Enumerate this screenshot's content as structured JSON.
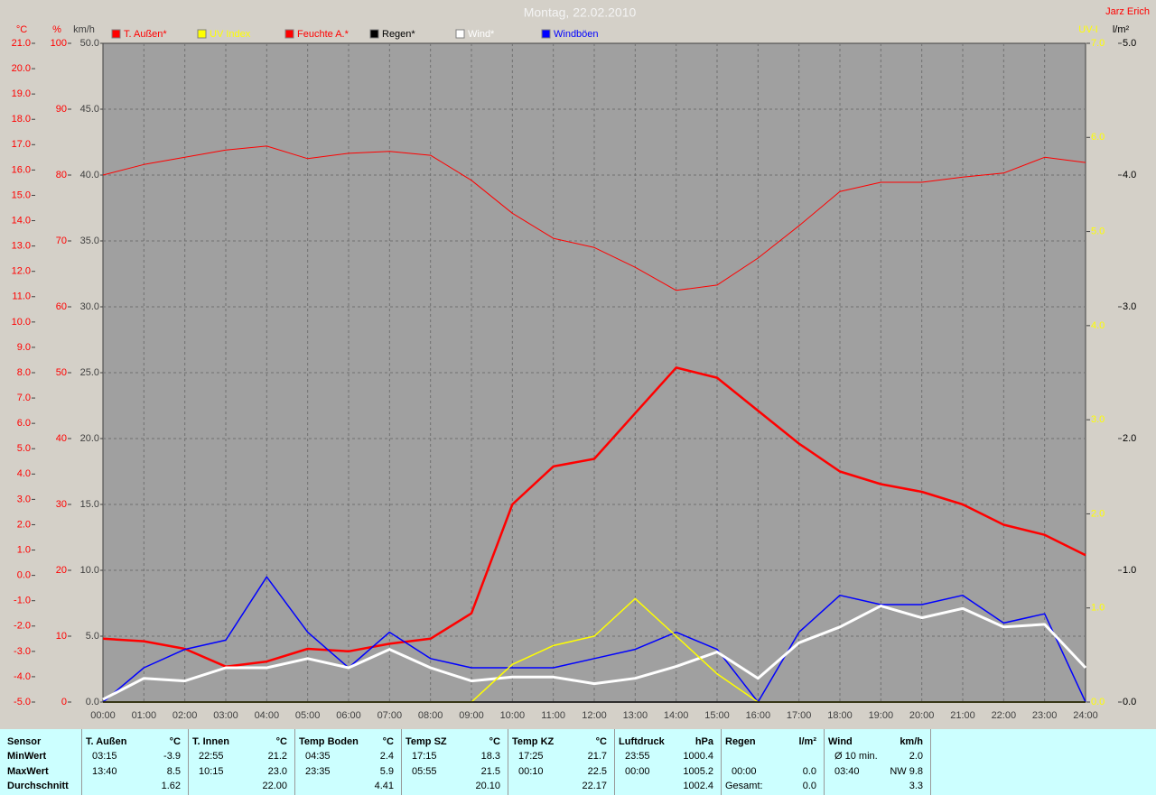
{
  "chart_data": {
    "type": "line",
    "title": "Montag, 22.02.2010",
    "author": "Jarz Erich",
    "categories": [
      "00:00",
      "01:00",
      "02:00",
      "03:00",
      "04:00",
      "05:00",
      "06:00",
      "07:00",
      "08:00",
      "09:00",
      "10:00",
      "11:00",
      "12:00",
      "13:00",
      "14:00",
      "15:00",
      "16:00",
      "17:00",
      "18:00",
      "19:00",
      "20:00",
      "21:00",
      "22:00",
      "23:00",
      "24:00"
    ],
    "axes": [
      {
        "unit": "°C",
        "color": "#ff0000",
        "lim": [
          -5,
          21
        ],
        "ticks": [
          {
            "value": -5,
            "label": "-5.0"
          },
          {
            "value": -4,
            "label": "-4.0"
          },
          {
            "value": -3,
            "label": "-3.0"
          },
          {
            "value": -2,
            "label": "-2.0"
          },
          {
            "value": -1,
            "label": "-1.0"
          },
          {
            "value": 0,
            "label": "0.0"
          },
          {
            "value": 1,
            "label": "1.0"
          },
          {
            "value": 2,
            "label": "2.0"
          },
          {
            "value": 3,
            "label": "3.0"
          },
          {
            "value": 4,
            "label": "4.0"
          },
          {
            "value": 5,
            "label": "5.0"
          },
          {
            "value": 6,
            "label": "6.0"
          },
          {
            "value": 7,
            "label": "7.0"
          },
          {
            "value": 8,
            "label": "8.0"
          },
          {
            "value": 9,
            "label": "9.0"
          },
          {
            "value": 10,
            "label": "10.0"
          },
          {
            "value": 11,
            "label": "11.0"
          },
          {
            "value": 12,
            "label": "12.0"
          },
          {
            "value": 13,
            "label": "13.0"
          },
          {
            "value": 14,
            "label": "14.0"
          },
          {
            "value": 15,
            "label": "15.0"
          },
          {
            "value": 16,
            "label": "16.0"
          },
          {
            "value": 17,
            "label": "17.0"
          },
          {
            "value": 18,
            "label": "18.0"
          },
          {
            "value": 19,
            "label": "19.0"
          },
          {
            "value": 20,
            "label": "20.0"
          },
          {
            "value": 21,
            "label": "21.0"
          }
        ]
      },
      {
        "unit": "%",
        "color": "#ff0000",
        "lim": [
          0,
          100
        ],
        "ticks": [
          0,
          10,
          20,
          30,
          40,
          50,
          60,
          70,
          80,
          90,
          100
        ]
      },
      {
        "unit": "km/h",
        "color": "#404040",
        "lim": [
          0,
          50
        ],
        "grid": true,
        "ticks": [
          {
            "value": 0,
            "label": "0.0"
          },
          {
            "value": 5,
            "label": "5.0"
          },
          {
            "value": 10,
            "label": "10.0"
          },
          {
            "value": 15,
            "label": "15.0"
          },
          {
            "value": 20,
            "label": "20.0"
          },
          {
            "value": 25,
            "label": "25.0"
          },
          {
            "value": 30,
            "label": "30.0"
          },
          {
            "value": 35,
            "label": "35.0"
          },
          {
            "value": 40,
            "label": "40.0"
          },
          {
            "value": 45,
            "label": "45.0"
          },
          {
            "value": 50,
            "label": "50.0"
          }
        ]
      },
      {
        "unit": "UV-I",
        "color": "#ffff00",
        "lim": [
          0,
          7
        ],
        "ticks": [
          {
            "value": 0,
            "label": "0.0"
          },
          {
            "value": 1,
            "label": "1.0"
          },
          {
            "value": 2,
            "label": "2.0"
          },
          {
            "value": 3,
            "label": "3.0"
          },
          {
            "value": 4,
            "label": "4.0"
          },
          {
            "value": 5,
            "label": "5.0"
          },
          {
            "value": 6,
            "label": "6.0"
          },
          {
            "value": 7,
            "label": "7.0"
          }
        ]
      },
      {
        "unit": "l/m²",
        "color": "#000000",
        "lim": [
          0,
          5
        ],
        "ticks": [
          {
            "value": 0,
            "label": "0.0"
          },
          {
            "value": 1,
            "label": "1.0"
          },
          {
            "value": 2,
            "label": "2.0"
          },
          {
            "value": 3,
            "label": "3.0"
          },
          {
            "value": 4,
            "label": "4.0"
          },
          {
            "value": 5,
            "label": "5.0"
          }
        ]
      }
    ],
    "series": [
      {
        "name": "T. Außen*",
        "color": "#ff0000",
        "axis": 0,
        "values": [
          -2.5,
          -2.6,
          -2.9,
          -3.6,
          -3.4,
          -2.9,
          -3.0,
          -2.7,
          -2.5,
          -1.5,
          2.8,
          4.3,
          4.6,
          6.4,
          8.2,
          7.8,
          6.5,
          5.2,
          4.1,
          3.6,
          3.3,
          2.8,
          2.0,
          1.6,
          0.8
        ]
      },
      {
        "name": "UV Index",
        "color": "#ffff00",
        "axis": 3,
        "values": [
          0,
          0,
          0,
          0,
          0,
          0,
          0,
          0,
          0,
          0,
          0.4,
          0.6,
          0.7,
          1.1,
          0.7,
          0.3,
          0,
          0,
          0,
          0,
          0,
          0,
          0,
          0,
          0
        ]
      },
      {
        "name": "Feuchte A.*",
        "color": "#ff0000",
        "axis": 1,
        "values": [
          80,
          81.6,
          82.7,
          83.8,
          84.4,
          82.5,
          83.3,
          83.6,
          83,
          79.2,
          74.2,
          70.4,
          69,
          66,
          62.5,
          63.3,
          67.4,
          72.3,
          77.5,
          78.9,
          78.9,
          79.7,
          80.3,
          82.7,
          81.9
        ]
      },
      {
        "name": "Regen*",
        "color": "#000000",
        "axis": 4,
        "values": [
          0,
          0,
          0,
          0,
          0,
          0,
          0,
          0,
          0,
          0,
          0,
          0,
          0,
          0,
          0,
          0,
          0,
          0,
          0,
          0,
          0,
          0,
          0,
          0,
          0
        ]
      },
      {
        "name": "Wind*",
        "color": "#ffffff",
        "axis": 2,
        "values": [
          0.2,
          1.8,
          1.6,
          2.6,
          2.6,
          3.3,
          2.6,
          4.0,
          2.6,
          1.6,
          1.9,
          1.9,
          1.4,
          1.8,
          2.7,
          3.8,
          1.8,
          4.5,
          5.7,
          7.3,
          6.4,
          7.1,
          5.7,
          5.9,
          2.6
        ]
      },
      {
        "name": "Windböen",
        "color": "#0000ff",
        "axis": 2,
        "values": [
          0,
          2.6,
          4.0,
          4.7,
          9.5,
          5.3,
          2.6,
          5.3,
          3.3,
          2.6,
          2.6,
          2.6,
          3.3,
          4.0,
          5.3,
          4.0,
          0,
          5.3,
          8.1,
          7.4,
          7.4,
          8.1,
          6.0,
          6.7,
          0
        ]
      }
    ]
  },
  "stats": {
    "row_labels": [
      "Sensor",
      "MinWert",
      "MaxWert",
      "Durchschnitt"
    ],
    "groups": [
      {
        "name": "T. Außen",
        "unit": "°C",
        "min": {
          "time": "03:15",
          "value": "-3.9"
        },
        "max": {
          "time": "13:40",
          "value": "8.5"
        },
        "avg": "1.62"
      },
      {
        "name": "T. Innen",
        "unit": "°C",
        "min": {
          "time": "22:55",
          "value": "21.2"
        },
        "max": {
          "time": "10:15",
          "value": "23.0"
        },
        "avg": "22.00"
      },
      {
        "name": "Temp Boden",
        "unit": "°C",
        "min": {
          "time": "04:35",
          "value": "2.4"
        },
        "max": {
          "time": "23:35",
          "value": "5.9"
        },
        "avg": "4.41"
      },
      {
        "name": "Temp SZ",
        "unit": "°C",
        "min": {
          "time": "17:15",
          "value": "18.3"
        },
        "max": {
          "time": "05:55",
          "value": "21.5"
        },
        "avg": "20.10"
      },
      {
        "name": "Temp KZ",
        "unit": "°C",
        "min": {
          "time": "17:25",
          "value": "21.7"
        },
        "max": {
          "time": "00:10",
          "value": "22.5"
        },
        "avg": "22.17"
      },
      {
        "name": "Luftdruck",
        "unit": "hPa",
        "min": {
          "time": "23:55",
          "value": "1000.4"
        },
        "max": {
          "time": "00:00",
          "value": "1005.2"
        },
        "avg": "1002.4"
      },
      {
        "name": "Regen",
        "unit": "l/m²",
        "max": {
          "time": "00:00",
          "value": "0.0"
        },
        "avg_label": "Gesamt:",
        "avg": "0.0"
      },
      {
        "name": "Wind",
        "unit": "km/h",
        "min": {
          "time": "Ø 10 min.",
          "value": "2.0"
        },
        "max": {
          "time": "03:40",
          "value": "NW 9.8"
        },
        "avg": "3.3"
      }
    ]
  }
}
